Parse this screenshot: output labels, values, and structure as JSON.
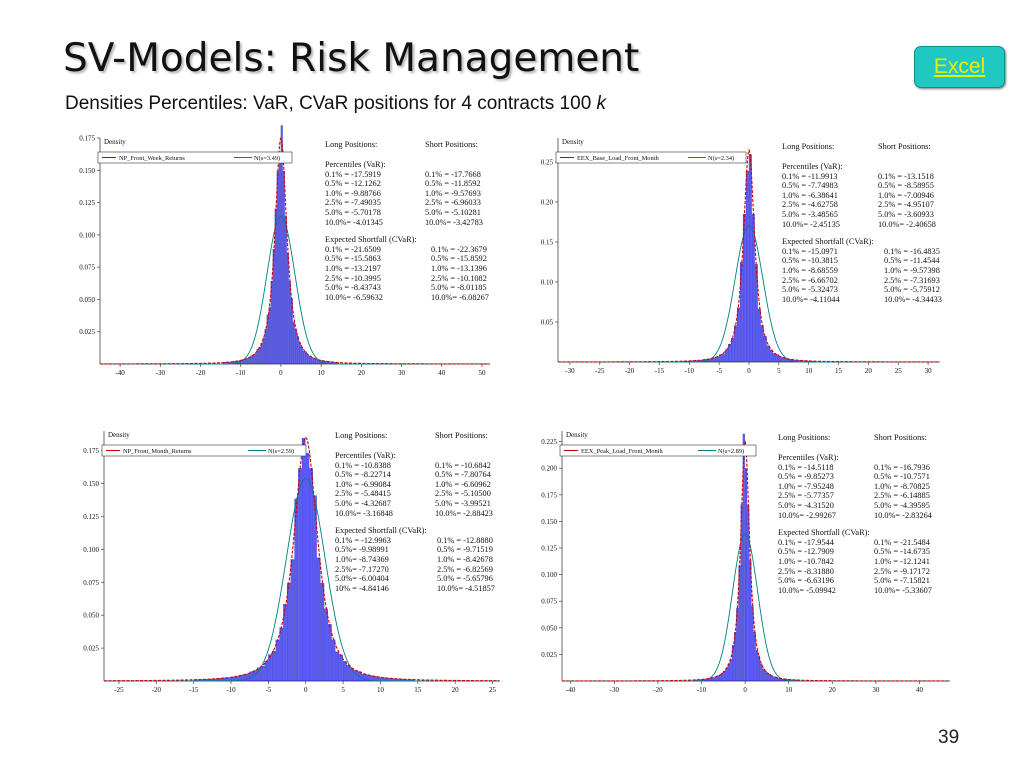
{
  "title": "SV-Models: Risk Management",
  "subtitle": "Densities Percentiles: VaR, CVaR positions for 4 contracts 100",
  "subtitle_k": "k",
  "excel_button": "Excel",
  "page_number": "39",
  "colors": {
    "bars": "#1a1af0",
    "empirical": "#cc0000",
    "normal": "#008080",
    "excel_bg": "#1fc8c3",
    "excel_text": "#e8f000"
  },
  "charts": [
    {
      "density_label": "Density",
      "legend_series": "NP_Front_Week_Returns",
      "legend_normal": "N(s=3.49)",
      "long_title": "Long Positions:",
      "short_title": "Short Positions:",
      "pct_title": "Percentiles (VaR):",
      "es_title": "Expected Shortfall (CVaR):",
      "long_var": [
        "0.1% = -17.5919",
        "0.5% = -12.1262",
        "1.0% = -9.88766",
        "2.5% = -7.49035",
        "5.0% = -5.70178",
        "10.0%= -4.01345"
      ],
      "short_var": [
        "0.1% = -17.7668",
        "0.5% = -11.8592",
        "1.0% = -9.57693",
        "2.5% = -6.96033",
        "5.0% = -5.10281",
        "10.0%= -3.42783"
      ],
      "long_es": [
        "0.1% = -21.6509",
        "0.5% = -15.5863",
        "1.0% = -13.2197",
        "2.5% = -10.3995",
        "5.0% = -8.43743",
        "10.0%= -6.59632"
      ],
      "short_es": [
        "0.1% = -22.3679",
        "0.5% = -15.8592",
        "1.0% = -13.1396",
        "2.5% = -10.1082",
        "5.0% = -8.01185",
        "10.0%= -6.08267"
      ]
    },
    {
      "density_label": "Density",
      "legend_series": "EEX_Base_Load_Front_Month",
      "legend_normal": "N(s=2.34)",
      "long_title": "Long Positions:",
      "short_title": "Short Positions:",
      "pct_title": "Percentiles (VaR):",
      "es_title": "Expected Shortfall (CVaR):",
      "long_var": [
        "0.1% = -11.9913",
        "0.5% = -7.74983",
        "1.0% = -6.38641",
        "2.5% = -4.62758",
        "5.0% = -3.48565",
        "10.0%= -2.45135"
      ],
      "short_var": [
        "0.1% = -13.1518",
        "0.5% = -8.58955",
        "1.0% = -7.00946",
        "2.5% = -4.95107",
        "5.0% = -3.60933",
        "10.0%= -2.40658"
      ],
      "long_es": [
        "0.1% = -15.0971",
        "0.5% = -10.3815",
        "1.0% = -8.68559",
        "2.5% = -6.66702",
        "5.0% = -5.32473",
        "10.0%= -4.11044"
      ],
      "short_es": [
        "0.1% = -16.4835",
        "0.5% = -11.4544",
        "1.0% = -9.57398",
        "2.5% = -7.31693",
        "5.0% = -5.75912",
        "10.0%= -4.34433"
      ]
    },
    {
      "density_label": "Density",
      "legend_series": "NP_Front_Month_Returns",
      "legend_normal": "N(s=2.59)",
      "long_title": "Long Positions:",
      "short_title": "Short Positions:",
      "pct_title": "Percentiles (VaR):",
      "es_title": "Expected Shortfall (CVaR):",
      "long_var": [
        "0.1% = -10.8388",
        "0.5% = -8.22714",
        "1.0% = -6.99084",
        "2.5% = -5.48415",
        "5.0% = -4.32687",
        "10.0%= -3.16848"
      ],
      "short_var": [
        "0.1% = -10.6842",
        "0.5% = -7.80764",
        "1.0% = -6.60962",
        "2.5% = -5.10500",
        "5.0% = -3.99521",
        "10.0%= -2.88423"
      ],
      "long_es": [
        "0.1% = -12.9963",
        "0.5%= -9.98991",
        "1.0%= -8.74369",
        "2.5%= -7.17270",
        "5.0%= -6.00404",
        "10% = -4.84146"
      ],
      "short_es": [
        "0.1% = -12.8880",
        "0.5% = -9.71519",
        "1.0% = -8.42678",
        "2.5% = -6.82569",
        "5.0% = -5.65796",
        "10.0%= -4.51857"
      ]
    },
    {
      "density_label": "Density",
      "legend_series": "EEX_Peak_Load_Front_Month",
      "legend_normal": "N(s=2.89)",
      "long_title": "Long Positions:",
      "short_title": "Short Positions:",
      "pct_title": "Percentiles (VaR):",
      "es_title": "Expected Shortfall (CVaR):",
      "long_var": [
        "0.1% = -14.5118",
        "0.5% = -9.85273",
        "1.0% = -7.95248",
        "2.5% = -5.77357",
        "5.0% = -4.31520",
        "10.0%= -2.99267"
      ],
      "short_var": [
        "0.1% = -16.7936",
        "0.5% = -10.7571",
        "1.0% = -8.70825",
        "2.5% = -6.14885",
        "5.0% = -4.39595",
        "10.0%= -2.83264"
      ],
      "long_es": [
        "0.1% = -17.9544",
        "0.5% = -12.7909",
        "1.0% = -10.7842",
        "2.5% = -8.31880",
        "5.0% = -6.63196",
        "10.0%= -5.09942"
      ],
      "short_es": [
        "0.1% = -21.5484",
        "0.5% = -14.6735",
        "1.0% = -12.1241",
        "2.5% = -9.17172",
        "5.0% = -7.15821",
        "10.0%= -5.33607"
      ]
    }
  ],
  "chart_data": [
    {
      "type": "bar",
      "series": [
        {
          "name": "NP_Front_Week_Returns"
        },
        {
          "name": "N(s=3.49)",
          "sigma": 3.49
        }
      ],
      "xlim": [
        -45,
        52
      ],
      "ylim": [
        0,
        0.175
      ],
      "xticks": [
        -40,
        -30,
        -20,
        -10,
        0,
        10,
        20,
        30,
        40,
        50
      ],
      "yticks": [
        0.025,
        0.05,
        0.075,
        0.1,
        0.125,
        0.15,
        0.175
      ],
      "yticklabels": [
        "0.025",
        "0.050",
        "0.075",
        "0.100",
        "0.125",
        "0.150",
        "0.175"
      ],
      "ylabel": "Density",
      "peak": 0.175,
      "scale": 1.65,
      "tail_power": 1.6,
      "bin": 0.5
    },
    {
      "type": "bar",
      "series": [
        {
          "name": "EEX_Base_Load_Front_Month"
        },
        {
          "name": "N(s=2.34)",
          "sigma": 2.34
        }
      ],
      "xlim": [
        -32,
        32
      ],
      "ylim": [
        0,
        0.28
      ],
      "xticks": [
        -30,
        -25,
        -20,
        -15,
        -10,
        -5,
        0,
        5,
        10,
        15,
        20,
        25,
        30
      ],
      "yticks": [
        0.05,
        0.1,
        0.15,
        0.2,
        0.25
      ],
      "yticklabels": [
        "0.05",
        "0.10",
        "0.15",
        "0.20",
        "0.25"
      ],
      "ylabel": "Density",
      "peak": 0.265,
      "scale": 1.05,
      "tail_power": 1.6,
      "bin": 0.5
    },
    {
      "type": "bar",
      "series": [
        {
          "name": "NP_Front_Month_Returns"
        },
        {
          "name": "N(s=2.59)",
          "sigma": 2.59
        }
      ],
      "xlim": [
        -27,
        26
      ],
      "ylim": [
        0,
        0.19
      ],
      "xticks": [
        -25,
        -20,
        -15,
        -10,
        -5,
        0,
        5,
        10,
        15,
        20,
        25
      ],
      "yticks": [
        0.025,
        0.05,
        0.075,
        0.1,
        0.125,
        0.15,
        0.175
      ],
      "yticklabels": [
        "0.025",
        "0.050",
        "0.075",
        "0.100",
        "0.125",
        "0.150",
        "0.175"
      ],
      "ylabel": "Density",
      "peak": 0.185,
      "scale": 1.75,
      "tail_power": 1.85,
      "bin": 0.5
    },
    {
      "type": "bar",
      "series": [
        {
          "name": "EEX_Peak_Load_Front_Month"
        },
        {
          "name": "N(s=2.89)",
          "sigma": 2.89
        }
      ],
      "xlim": [
        -42,
        47
      ],
      "ylim": [
        0,
        0.235
      ],
      "xticks": [
        -40,
        -30,
        -20,
        -10,
        0,
        10,
        20,
        30,
        40
      ],
      "yticks": [
        0.025,
        0.05,
        0.075,
        0.1,
        0.125,
        0.15,
        0.175,
        0.2,
        0.225
      ],
      "yticklabels": [
        "0.025",
        "0.050",
        "0.075",
        "0.100",
        "0.125",
        "0.150",
        "0.175",
        "0.200",
        "0.225"
      ],
      "ylabel": "Density",
      "peak": 0.225,
      "scale": 1.15,
      "tail_power": 1.6,
      "bin": 0.5
    }
  ]
}
